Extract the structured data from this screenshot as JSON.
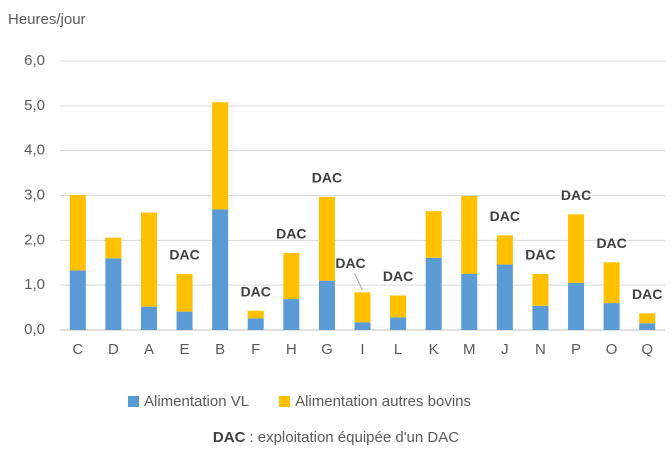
{
  "chart_data": {
    "type": "stacked-bar",
    "y_label": "Heures/jour",
    "categories": [
      "C",
      "D",
      "A",
      "E",
      "B",
      "F",
      "H",
      "G",
      "I",
      "L",
      "K",
      "M",
      "J",
      "N",
      "P",
      "O",
      "Q"
    ],
    "series": [
      {
        "name": "Alimentation VL",
        "color": "#5b9bd5",
        "values": [
          1.33,
          1.6,
          0.52,
          0.41,
          2.69,
          0.26,
          0.69,
          1.1,
          0.17,
          0.28,
          1.61,
          1.25,
          1.46,
          0.54,
          1.05,
          0.6,
          0.15
        ]
      },
      {
        "name": "Alimentation autres bovins",
        "color": "#ffc000",
        "values": [
          1.68,
          0.46,
          2.1,
          0.84,
          2.39,
          0.17,
          1.03,
          1.87,
          0.67,
          0.49,
          1.04,
          1.74,
          0.65,
          0.71,
          1.53,
          0.91,
          0.22
        ]
      }
    ],
    "ylim": [
      0,
      6
    ],
    "yticks": [
      {
        "value": 0,
        "label": "0,0"
      },
      {
        "value": 1,
        "label": "1,0"
      },
      {
        "value": 2,
        "label": "2,0"
      },
      {
        "value": 3,
        "label": "3,0"
      },
      {
        "value": 4,
        "label": "4,0"
      },
      {
        "value": 5,
        "label": "5,0"
      },
      {
        "value": 6,
        "label": "6,0"
      }
    ],
    "grid": true,
    "legend": "bottom",
    "annotations": [
      {
        "text": "DAC",
        "category": "E"
      },
      {
        "text": "DAC",
        "category": "F"
      },
      {
        "text": "DAC",
        "category": "H"
      },
      {
        "text": "DAC",
        "category": "G"
      },
      {
        "text": "DAC",
        "category": "I"
      },
      {
        "text": "DAC",
        "category": "L"
      },
      {
        "text": "DAC",
        "category": "J"
      },
      {
        "text": "DAC",
        "category": "N"
      },
      {
        "text": "DAC",
        "category": "P"
      },
      {
        "text": "DAC",
        "category": "O"
      },
      {
        "text": "DAC",
        "category": "Q"
      }
    ],
    "note_term": "DAC",
    "note_text": ": exploitation équipée d'un DAC"
  }
}
